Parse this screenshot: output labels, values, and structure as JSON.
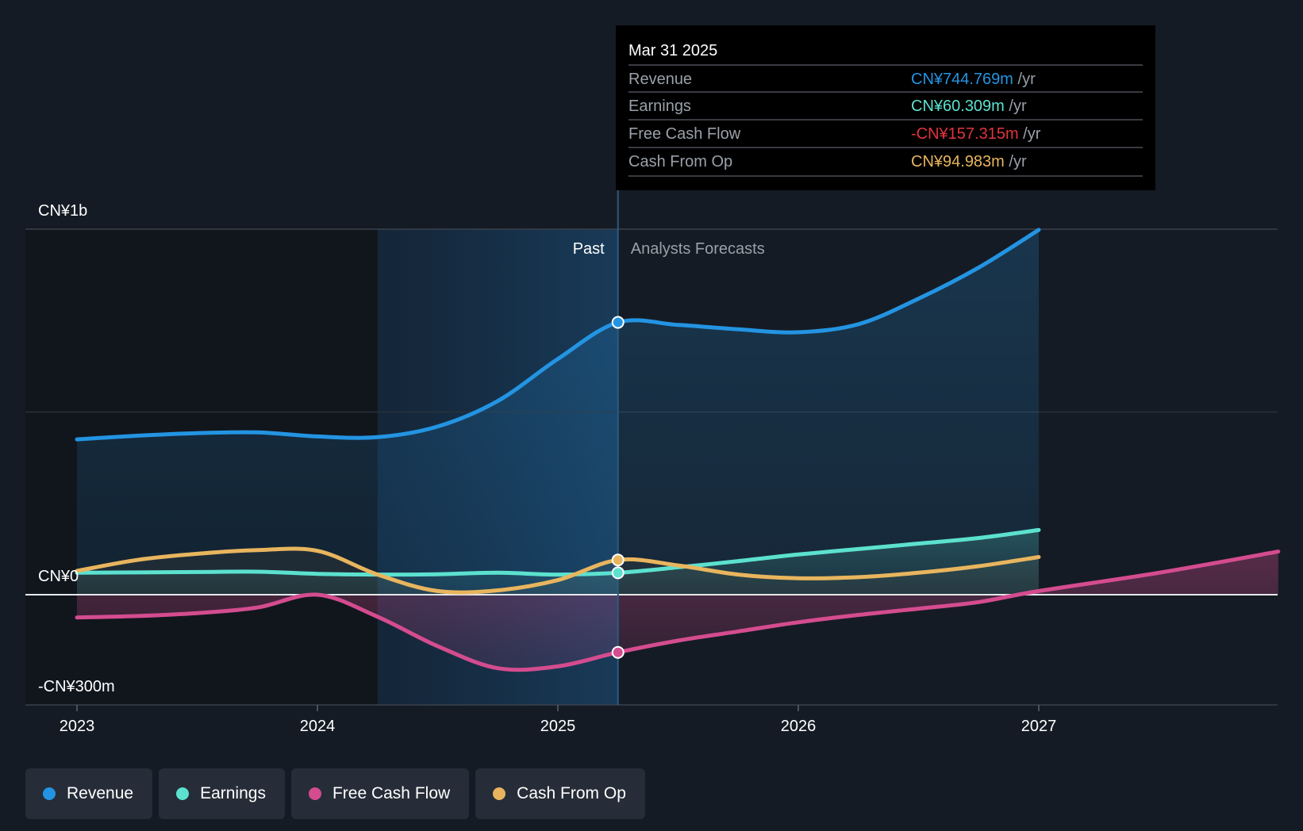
{
  "chart_data": {
    "type": "line",
    "x_labels": [
      "2023",
      "2024",
      "2025",
      "2026",
      "2027"
    ],
    "xlim": [
      2023.0,
      2027.996
    ],
    "ylim": [
      -300,
      1000
    ],
    "y_axis": {
      "ticks": [
        1000,
        500,
        0,
        -300
      ],
      "labels": [
        "CN¥1b",
        "",
        "CN¥0",
        "-CN¥300m"
      ]
    },
    "past_label": "Past",
    "forecast_label": "Analysts Forecasts",
    "highlight_start": 2024.25,
    "divider_x": 2025.25,
    "series": [
      {
        "name": "Revenue",
        "key": "revenue",
        "color": "#2394e2",
        "points": [
          [
            2023.0,
            425
          ],
          [
            2023.25,
            435
          ],
          [
            2023.5,
            442
          ],
          [
            2023.75,
            444
          ],
          [
            2024.0,
            433
          ],
          [
            2024.25,
            431
          ],
          [
            2024.5,
            460
          ],
          [
            2024.75,
            530
          ],
          [
            2025.0,
            645
          ],
          [
            2025.25,
            745
          ],
          [
            2025.5,
            738
          ],
          [
            2025.75,
            726
          ],
          [
            2026.0,
            718
          ],
          [
            2026.25,
            740
          ],
          [
            2026.5,
            810
          ],
          [
            2026.75,
            895
          ],
          [
            2027.0,
            998
          ]
        ]
      },
      {
        "name": "Earnings",
        "key": "earnings",
        "color": "#5ce1cf",
        "points": [
          [
            2023.0,
            60
          ],
          [
            2023.25,
            61
          ],
          [
            2023.5,
            62
          ],
          [
            2023.75,
            63
          ],
          [
            2024.0,
            57
          ],
          [
            2024.25,
            55
          ],
          [
            2024.5,
            56
          ],
          [
            2024.75,
            60
          ],
          [
            2025.0,
            55
          ],
          [
            2025.25,
            60
          ],
          [
            2025.5,
            75
          ],
          [
            2025.75,
            92
          ],
          [
            2026.0,
            110
          ],
          [
            2026.25,
            125
          ],
          [
            2026.5,
            140
          ],
          [
            2026.75,
            155
          ],
          [
            2027.0,
            177
          ]
        ]
      },
      {
        "name": "Free Cash Flow",
        "key": "fcf",
        "color": "#d44c8f",
        "points": [
          [
            2023.0,
            -62
          ],
          [
            2023.25,
            -58
          ],
          [
            2023.5,
            -50
          ],
          [
            2023.75,
            -35
          ],
          [
            2024.0,
            0
          ],
          [
            2024.25,
            -60
          ],
          [
            2024.5,
            -140
          ],
          [
            2024.75,
            -200
          ],
          [
            2025.0,
            -195
          ],
          [
            2025.25,
            -157
          ],
          [
            2025.5,
            -125
          ],
          [
            2025.75,
            -100
          ],
          [
            2026.0,
            -75
          ],
          [
            2026.25,
            -55
          ],
          [
            2026.5,
            -38
          ],
          [
            2026.75,
            -20
          ],
          [
            2027.0,
            10
          ],
          [
            2027.5,
            60
          ],
          [
            2027.996,
            118
          ]
        ]
      },
      {
        "name": "Cash From Op",
        "key": "cfo",
        "color": "#e8b55e",
        "points": [
          [
            2023.0,
            65
          ],
          [
            2023.25,
            95
          ],
          [
            2023.5,
            112
          ],
          [
            2023.75,
            122
          ],
          [
            2024.0,
            120
          ],
          [
            2024.25,
            55
          ],
          [
            2024.5,
            10
          ],
          [
            2024.75,
            12
          ],
          [
            2025.0,
            40
          ],
          [
            2025.25,
            95
          ],
          [
            2025.5,
            80
          ],
          [
            2025.75,
            55
          ],
          [
            2026.0,
            45
          ],
          [
            2026.25,
            48
          ],
          [
            2026.5,
            60
          ],
          [
            2026.75,
            78
          ],
          [
            2027.0,
            103
          ]
        ]
      }
    ],
    "tooltip": {
      "date": "Mar 31 2025",
      "x": 2025.25,
      "rows": [
        {
          "label": "Revenue",
          "value": "CN¥744.769m",
          "unit": "/yr",
          "color": "#2394e2"
        },
        {
          "label": "Earnings",
          "value": "CN¥60.309m",
          "unit": "/yr",
          "color": "#5ce1cf"
        },
        {
          "label": "Free Cash Flow",
          "value": "-CN¥157.315m",
          "unit": "/yr",
          "color": "#e0343d"
        },
        {
          "label": "Cash From Op",
          "value": "CN¥94.983m",
          "unit": "/yr",
          "color": "#e8b55e"
        }
      ]
    }
  },
  "legend": [
    {
      "label": "Revenue",
      "color": "#2394e2"
    },
    {
      "label": "Earnings",
      "color": "#5ce1cf"
    },
    {
      "label": "Free Cash Flow",
      "color": "#d44c8f"
    },
    {
      "label": "Cash From Op",
      "color": "#e8b55e"
    }
  ]
}
